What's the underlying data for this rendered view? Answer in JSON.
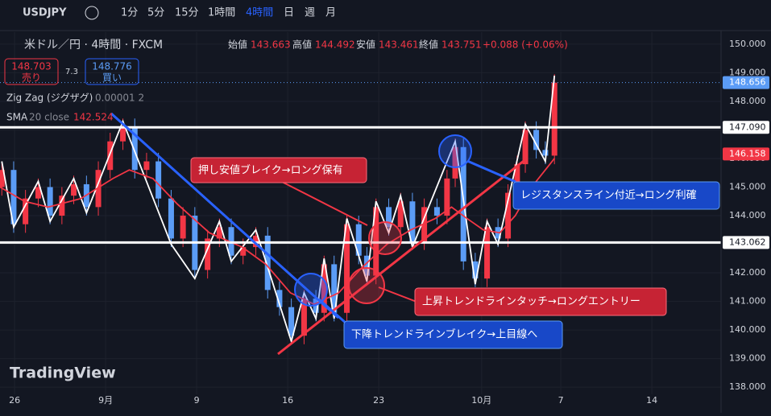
{
  "header": {
    "symbol": "USDJPY",
    "intervals": [
      "1分",
      "5分",
      "15分",
      "1時間",
      "4時間",
      "日",
      "週",
      "月"
    ],
    "active_interval": 4
  },
  "legend": {
    "title": "米ドル／円 · 4時間 · FXCM",
    "open_label": "始値",
    "open": "143.663",
    "high_label": "高値",
    "high": "144.492",
    "low_label": "安値",
    "low": "143.461",
    "close_label": "終値",
    "close": "143.751",
    "change": "+0.088 (+0.06%)",
    "sell_price": "148.703",
    "sell": "売り",
    "spread": "7.3",
    "buy_price": "148.776",
    "buy": "買い",
    "zigzag": "Zig Zag (ジグザグ)",
    "zigzag_params": "0.00001 2",
    "sma": "SMA",
    "sma_params": "20 close",
    "sma_value": "142.524"
  },
  "annotations": [
    "押し安値ブレイク→ロング保有",
    "レジスタンスライン付近→ロング利確",
    "上昇トレンドラインタッチ→ロングエントリー",
    "下降トレンドラインブレイク→上目線へ"
  ],
  "watermark": "TradingView",
  "chart_data": {
    "type": "candlestick",
    "up_color": "#f23645",
    "down_color": "#5b9cf6",
    "grid": true,
    "x": [
      -0.14,
      -0.01,
      0.12,
      0.26,
      0.39,
      0.52,
      0.65,
      0.79,
      0.92,
      1.05,
      1.19,
      1.32,
      1.45,
      1.58,
      1.72,
      1.85,
      1.98,
      2.12,
      2.25,
      2.38,
      2.51,
      2.65,
      2.78,
      2.91,
      3.04,
      3.18,
      3.31,
      3.4,
      3.51,
      3.65,
      3.78,
      3.87,
      3.97,
      4.11,
      4.24,
      4.37,
      4.5,
      4.64,
      4.75,
      4.84,
      4.93,
      5.06,
      5.19,
      5.31,
      5.42,
      5.52,
      5.61,
      5.73,
      5.83,
      5.93
    ],
    "open": [
      145.0,
      145.6,
      143.7,
      144.6,
      145.0,
      144.0,
      144.7,
      145.1,
      144.3,
      145.6,
      146.6,
      147.1,
      145.6,
      145.9,
      144.6,
      143.2,
      144.0,
      142.1,
      143.2,
      143.6,
      142.6,
      142.9,
      143.3,
      141.4,
      140.8,
      139.8,
      141.1,
      140.6,
      142.3,
      140.6,
      143.7,
      142.6,
      141.9,
      144.3,
      143.6,
      144.5,
      143.1,
      144.3,
      144.0,
      145.3,
      146.4,
      142.4,
      141.8,
      143.6,
      143.2,
      144.8,
      145.8,
      147.0,
      146.3,
      146.1
    ],
    "high": [
      145.9,
      145.9,
      144.9,
      145.3,
      145.3,
      145.0,
      145.4,
      145.4,
      145.9,
      146.9,
      147.4,
      147.4,
      146.2,
      146.2,
      144.9,
      144.3,
      144.3,
      143.5,
      143.9,
      143.9,
      143.2,
      143.6,
      143.6,
      141.7,
      141.1,
      141.4,
      141.4,
      142.6,
      142.6,
      144.0,
      144.0,
      142.9,
      144.6,
      144.6,
      144.8,
      144.8,
      144.6,
      144.6,
      145.6,
      146.7,
      146.7,
      142.7,
      143.9,
      143.9,
      145.1,
      146.1,
      147.3,
      147.3,
      146.6,
      148.95
    ],
    "low": [
      144.7,
      143.4,
      143.4,
      144.3,
      143.7,
      143.7,
      144.4,
      144.0,
      144.0,
      145.3,
      146.3,
      145.3,
      145.3,
      144.3,
      142.9,
      142.9,
      141.8,
      141.8,
      142.9,
      142.3,
      142.3,
      142.6,
      141.1,
      140.5,
      139.5,
      139.5,
      140.3,
      140.3,
      140.3,
      140.3,
      142.3,
      141.6,
      141.6,
      143.3,
      143.3,
      142.8,
      142.8,
      143.7,
      143.7,
      145.0,
      142.1,
      141.5,
      141.5,
      142.9,
      142.9,
      144.5,
      145.5,
      146.0,
      145.8,
      145.8
    ],
    "close": [
      145.6,
      143.7,
      144.6,
      145.0,
      144.0,
      144.7,
      145.1,
      144.3,
      145.6,
      146.6,
      147.1,
      145.6,
      145.9,
      144.6,
      143.2,
      144.0,
      142.1,
      143.2,
      143.6,
      142.6,
      142.9,
      143.3,
      141.4,
      140.8,
      139.8,
      141.1,
      140.6,
      142.3,
      140.6,
      143.7,
      142.6,
      141.9,
      144.3,
      143.6,
      144.5,
      143.1,
      144.3,
      144.0,
      145.3,
      146.4,
      142.4,
      141.8,
      143.6,
      143.2,
      144.8,
      145.8,
      147.0,
      146.3,
      146.1,
      148.656
    ],
    "overlays": [
      {
        "color": "#ffffff",
        "x": [
          -0.14,
          -0.01,
          0.26,
          0.39,
          0.65,
          0.79,
          1.19,
          1.72,
          1.98,
          2.25,
          2.38,
          2.65,
          3.04,
          3.18,
          3.31,
          3.4,
          3.51,
          3.65,
          3.87,
          3.97,
          4.11,
          4.24,
          4.37,
          4.84,
          5.06,
          5.19,
          5.31,
          5.61,
          5.83,
          5.93
        ],
        "values": [
          145.9,
          143.6,
          145.2,
          143.8,
          145.3,
          144.1,
          147.3,
          143.0,
          141.8,
          143.8,
          142.4,
          143.5,
          139.6,
          141.3,
          140.4,
          142.5,
          140.4,
          143.9,
          141.7,
          144.5,
          143.4,
          144.7,
          142.9,
          146.6,
          141.6,
          143.8,
          143.0,
          147.2,
          145.9,
          148.9
        ]
      },
      {
        "color": "#f23645",
        "x": [
          -0.16,
          0.11,
          0.37,
          0.73,
          1.08,
          1.26,
          1.52,
          1.79,
          2.14,
          2.5,
          2.76,
          3.03,
          3.29,
          3.56,
          3.82,
          4.09,
          4.35,
          4.62,
          4.8,
          4.97,
          5.15,
          5.33,
          5.5,
          5.68,
          5.93
        ],
        "values": [
          145.0,
          144.5,
          144.3,
          144.6,
          145.3,
          145.6,
          145.3,
          144.4,
          143.4,
          142.9,
          142.3,
          141.3,
          140.9,
          141.3,
          142.2,
          143.0,
          143.5,
          143.9,
          144.3,
          143.9,
          143.5,
          143.4,
          144.0,
          145.0,
          146.0
        ]
      }
    ],
    "levels": [
      {
        "value": 147.09,
        "label": "147.090",
        "color": "#ffffff",
        "style": "solid"
      },
      {
        "value": 143.062,
        "label": "143.062",
        "color": "#ffffff",
        "style": "solid"
      },
      {
        "value": 148.656,
        "label": "148.656",
        "color": "#5b9cf6",
        "style": "dotted"
      },
      {
        "value": 146.158,
        "label": "146.158",
        "color": "#f23645",
        "style": "tag"
      }
    ],
    "xlim": [
      -0.16,
      7.76
    ],
    "ylim": [
      137.75,
      150.42
    ],
    "xticks": [
      {
        "value": 0,
        "label": "26"
      },
      {
        "value": 1,
        "label": "9月"
      },
      {
        "value": 2,
        "label": "9"
      },
      {
        "value": 3,
        "label": "16"
      },
      {
        "value": 4,
        "label": "23"
      },
      {
        "value": 5.13,
        "label": "10月"
      },
      {
        "value": 6,
        "label": "7"
      },
      {
        "value": 7,
        "label": "14"
      }
    ],
    "yticks": [
      {
        "value": 150,
        "label": "150.000"
      },
      {
        "value": 149,
        "label": "149.000"
      },
      {
        "value": 148,
        "label": "148.000"
      },
      {
        "value": 147,
        "label": "147.000"
      },
      {
        "value": 146,
        "label": "146.000"
      },
      {
        "value": 145,
        "label": "145.000"
      },
      {
        "value": 144,
        "label": "144.000"
      },
      {
        "value": 143,
        "label": "143.000"
      },
      {
        "value": 142,
        "label": "142.000"
      },
      {
        "value": 141,
        "label": "141.000"
      },
      {
        "value": 140,
        "label": "140.000"
      },
      {
        "value": 139,
        "label": "139.000"
      },
      {
        "value": 138,
        "label": "138.000"
      }
    ]
  }
}
